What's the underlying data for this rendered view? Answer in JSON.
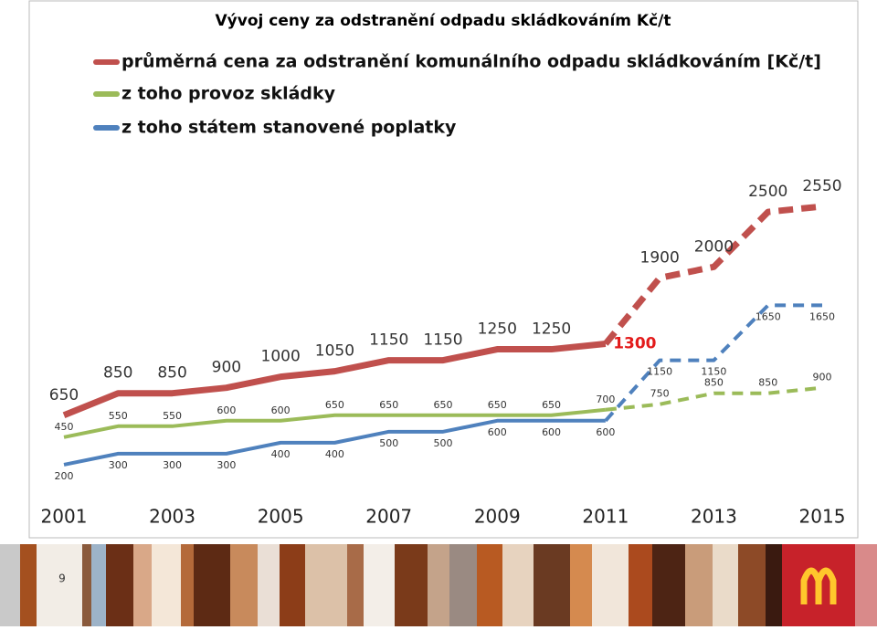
{
  "chart_data": {
    "type": "line",
    "title": "Vývoj ceny za odstranění odpadu skládkováním  Kč/t",
    "x": [
      2001,
      2002,
      2003,
      2004,
      2005,
      2006,
      2007,
      2008,
      2009,
      2010,
      2011,
      2012,
      2013,
      2014,
      2015
    ],
    "xlim": [
      2001,
      2015
    ],
    "xticks": [
      2001,
      2003,
      2005,
      2007,
      2009,
      2011,
      2013,
      2015
    ],
    "ylim": [
      0,
      2800
    ],
    "dashed_from_x": 2011,
    "legend": "top-left",
    "series": [
      {
        "name": "průměrná cena za odstranění komunálního odpadu skládkováním [Kč/t]",
        "color": "#c0504d",
        "values": [
          650,
          850,
          850,
          900,
          1000,
          1050,
          1150,
          1150,
          1250,
          1250,
          1300,
          1900,
          2000,
          2500,
          2550
        ]
      },
      {
        "name": "z toho provoz skládky",
        "color": "#9bbb59",
        "values": [
          450,
          550,
          550,
          600,
          600,
          650,
          650,
          650,
          650,
          650,
          700,
          750,
          850,
          850,
          900
        ]
      },
      {
        "name": "z toho státem stanovené poplatky",
        "color": "#4f81bd",
        "values": [
          200,
          300,
          300,
          300,
          400,
          400,
          500,
          500,
          600,
          600,
          600,
          1150,
          1150,
          1650,
          1650
        ]
      }
    ]
  },
  "slide": {
    "page_number": 9
  }
}
